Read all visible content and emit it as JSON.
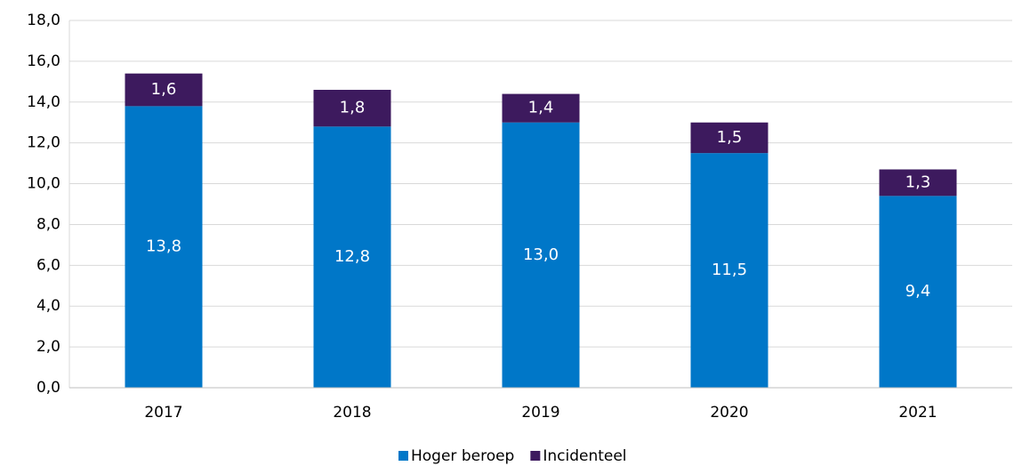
{
  "chart_data": {
    "type": "stacked_bar",
    "categories": [
      "2017",
      "2018",
      "2019",
      "2020",
      "2021"
    ],
    "series": [
      {
        "name": "Hoger beroep",
        "color": "#0077c8",
        "values": [
          13.8,
          12.8,
          13.0,
          11.5,
          9.4
        ],
        "value_labels": [
          "13,8",
          "12,8",
          "13,0",
          "11,5",
          "9,4"
        ]
      },
      {
        "name": "Incidenteel",
        "color": "#3d1a5e",
        "values": [
          1.6,
          1.8,
          1.4,
          1.5,
          1.3
        ],
        "value_labels": [
          "1,6",
          "1,8",
          "1,4",
          "1,5",
          "1,3"
        ]
      }
    ],
    "ylim": [
      0,
      18
    ],
    "yticks": [
      {
        "value": 0,
        "label": "0,0"
      },
      {
        "value": 2,
        "label": "2,0"
      },
      {
        "value": 4,
        "label": "4,0"
      },
      {
        "value": 6,
        "label": "6,0"
      },
      {
        "value": 8,
        "label": "8,0"
      },
      {
        "value": 10,
        "label": "10,0"
      },
      {
        "value": 12,
        "label": "12,0"
      },
      {
        "value": 14,
        "label": "14,0"
      },
      {
        "value": 16,
        "label": "16,0"
      },
      {
        "value": 18,
        "label": "18,0"
      }
    ],
    "grid": true,
    "legend": "bottom"
  }
}
